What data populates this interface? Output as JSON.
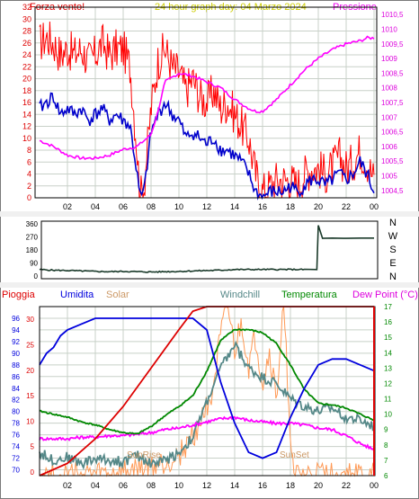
{
  "chart_data": [
    {
      "type": "line",
      "title": "24 hour graph day:  04 Marzo 2024",
      "left_axis_title": "Forza vento!",
      "right_axis_title": "Pressione",
      "x_ticks": [
        "02",
        "04",
        "06",
        "08",
        "10",
        "12",
        "14",
        "16",
        "18",
        "20",
        "22",
        "00"
      ],
      "left_axis": {
        "min": 0,
        "max": 32,
        "ticks": [
          "0",
          "2",
          "4",
          "6",
          "8",
          "10",
          "12",
          "14",
          "16",
          "18",
          "20",
          "22",
          "24",
          "26",
          "28",
          "30",
          "32"
        ]
      },
      "right_axis": {
        "min": 1004.25,
        "max": 1010.75,
        "ticks": [
          "1004,5",
          "1005",
          "1005,5",
          "1006",
          "1006,5",
          "1007",
          "1007,5",
          "1008",
          "1008,5",
          "1009",
          "1009,5",
          "1010",
          "1010,5"
        ]
      },
      "grid": true,
      "series": [
        {
          "axis": "left",
          "color": "#ff0000",
          "x": [
            0,
            0.5,
            1,
            1.5,
            2,
            2.5,
            3,
            3.5,
            4,
            4.5,
            5,
            5.5,
            6,
            6.5,
            7,
            7.2,
            7.5,
            8,
            8.5,
            9,
            9.5,
            10,
            10.5,
            11,
            11.5,
            12,
            12.5,
            13,
            13.5,
            14,
            14.5,
            15,
            15.5,
            16,
            16.5,
            17,
            17.5,
            18,
            18.5,
            19,
            19.5,
            20,
            20.5,
            21,
            21.5,
            22,
            22.5,
            23,
            23.5,
            24
          ],
          "y": [
            26,
            27,
            26,
            24,
            25,
            24,
            25,
            23,
            24,
            26,
            24,
            25,
            25,
            22,
            8,
            0,
            2,
            15,
            23,
            25,
            22,
            21,
            18,
            20,
            17,
            16,
            18,
            15,
            16,
            14,
            12,
            10,
            4,
            1,
            2,
            3,
            3,
            3,
            2,
            4,
            5,
            5,
            4,
            5,
            7,
            5,
            6,
            8,
            6,
            3
          ]
        },
        {
          "axis": "left",
          "color": "#0000cc",
          "x": [
            0,
            0.5,
            1,
            1.5,
            2,
            2.5,
            3,
            3.5,
            4,
            4.5,
            5,
            5.5,
            6,
            6.5,
            7,
            7.2,
            7.5,
            8,
            8.5,
            9,
            9.5,
            10,
            10.5,
            11,
            11.5,
            12,
            12.5,
            13,
            13.5,
            14,
            14.5,
            15,
            15.5,
            16,
            16.5,
            17,
            17.5,
            18,
            18.5,
            19,
            19.5,
            20,
            20.5,
            21,
            21.5,
            22,
            22.5,
            23,
            23.5,
            24
          ],
          "y": [
            15,
            16,
            17,
            14,
            15,
            14,
            15,
            13,
            14,
            15,
            13,
            14,
            13,
            12,
            4,
            0,
            1,
            11,
            14,
            16,
            14,
            13,
            10,
            11,
            10,
            9,
            10,
            8,
            8,
            7,
            6,
            4,
            1,
            0,
            1,
            1,
            1,
            2,
            1,
            2,
            3,
            3,
            2,
            3,
            4,
            3,
            4,
            6,
            4,
            1
          ]
        },
        {
          "axis": "right",
          "color": "#ff00ff",
          "x": [
            0,
            1,
            2,
            3,
            4,
            5,
            6,
            7,
            8,
            8.5,
            9,
            10,
            11,
            12,
            13,
            14,
            15,
            15.5,
            16,
            17,
            18,
            19,
            20,
            21,
            22,
            23,
            23.5,
            24
          ],
          "y": [
            1006.2,
            1006,
            1005.7,
            1005.6,
            1005.6,
            1005.7,
            1005.9,
            1006,
            1006.4,
            1007.2,
            1008.2,
            1008.5,
            1008.4,
            1008.2,
            1008,
            1007.6,
            1007.3,
            1007.2,
            1007.2,
            1007.6,
            1008.1,
            1008.6,
            1009,
            1009.3,
            1009.5,
            1009.6,
            1009.7,
            1009.7
          ]
        }
      ]
    },
    {
      "type": "line",
      "labels": [
        "N",
        "W",
        "S",
        "E",
        "N"
      ],
      "x_ticks": [
        "02",
        "04",
        "06",
        "08",
        "10",
        "12",
        "14",
        "16",
        "18",
        "20",
        "22",
        "00"
      ],
      "y_axis": {
        "min": 0,
        "max": 360,
        "ticks": [
          "0",
          "90",
          "180",
          "270",
          "360"
        ]
      },
      "grid": false,
      "series": [
        {
          "color": "#1a3a2a",
          "x": [
            0,
            1,
            2,
            3,
            4,
            5,
            6,
            7,
            8,
            9,
            10,
            11,
            12,
            13,
            14,
            15,
            16,
            17,
            18,
            19,
            19.9,
            20,
            20.3,
            21,
            22,
            23,
            24
          ],
          "y": [
            45,
            40,
            38,
            35,
            32,
            30,
            32,
            30,
            28,
            30,
            32,
            35,
            38,
            40,
            45,
            45,
            45,
            45,
            45,
            45,
            45,
            350,
            260,
            262,
            260,
            262,
            262
          ]
        }
      ]
    },
    {
      "type": "line",
      "legend": [
        "Pioggia",
        "Umidita",
        "Solar",
        "Windchill",
        "Temperatura",
        "Dew Point (°C)"
      ],
      "x_ticks": [
        "02",
        "04",
        "06",
        "08",
        "10",
        "12",
        "14",
        "16",
        "18",
        "20",
        "22",
        "00"
      ],
      "left_axis": {
        "min": 69,
        "max": 98,
        "ticks": [
          "70",
          "72",
          "74",
          "76",
          "78",
          "80",
          "82",
          "84",
          "86",
          "88",
          "90",
          "92",
          "94",
          "96"
        ]
      },
      "right_axis": {
        "min": 6,
        "max": 17,
        "ticks": [
          "6",
          "7",
          "8",
          "9",
          "10",
          "11",
          "12",
          "13",
          "14",
          "15",
          "16",
          "17"
        ]
      },
      "inner_ticks": [
        "0",
        "5",
        "10",
        "15",
        "20",
        "25",
        "30"
      ],
      "annotations": [
        "SunRise",
        "SunSet"
      ],
      "grid": true,
      "series": [
        {
          "name": "Pioggia",
          "axis": "right",
          "color": "#dd0000",
          "x": [
            0,
            2,
            4,
            6,
            8,
            10,
            11,
            12,
            24
          ],
          "y": [
            6,
            6.8,
            8.4,
            10.5,
            13,
            15.5,
            16.7,
            17,
            17
          ]
        },
        {
          "name": "Umidita",
          "axis": "left",
          "color": "#0000dd",
          "x": [
            0,
            0.5,
            1,
            1.5,
            2,
            3,
            4,
            5,
            6,
            6.5,
            7,
            8,
            9,
            10,
            11,
            12,
            13,
            14,
            15,
            16,
            17,
            18,
            19,
            20,
            21,
            22,
            23,
            24
          ],
          "y": [
            88,
            90,
            91,
            93,
            94,
            95,
            96,
            96,
            96,
            96,
            96,
            96,
            96,
            96,
            96,
            94,
            85,
            78,
            73,
            72,
            73,
            79,
            84,
            88,
            89,
            89,
            88,
            87
          ]
        },
        {
          "name": "Solar",
          "axis": "right",
          "color": "#ff9955",
          "x": [
            0,
            5,
            6,
            7,
            8,
            9,
            10,
            11,
            12,
            12.5,
            13,
            13.5,
            14,
            14.5,
            15,
            15.5,
            16,
            16.5,
            17,
            17.5,
            18,
            18.2,
            19,
            24
          ],
          "y": [
            6,
            6,
            6.1,
            6.3,
            6.5,
            6.8,
            7.4,
            8.5,
            10.5,
            12,
            15,
            17,
            14,
            16,
            13,
            15,
            12,
            14,
            11,
            17,
            9,
            6,
            6,
            6
          ]
        },
        {
          "name": "Windchill",
          "axis": "right",
          "color": "#558888",
          "x": [
            0,
            1,
            2,
            3,
            4,
            5,
            6,
            7,
            8,
            9,
            10,
            11,
            12,
            13,
            14,
            15,
            16,
            17,
            18,
            19,
            20,
            21,
            22,
            23,
            24
          ],
          "y": [
            7.5,
            7,
            7.2,
            6.8,
            7.1,
            7,
            6.9,
            7.3,
            6.8,
            7,
            7.5,
            8.5,
            10.8,
            13,
            14.5,
            13,
            12.4,
            12,
            11,
            10.5,
            10.2,
            10.4,
            9.8,
            9.6,
            9.2
          ]
        },
        {
          "name": "Temperatura",
          "axis": "right",
          "color": "#008800",
          "x": [
            0,
            1,
            2,
            3,
            4,
            5,
            6,
            7,
            8,
            9,
            10,
            11,
            12,
            13,
            14,
            15,
            16,
            17,
            18,
            19,
            20,
            21,
            22,
            23,
            24
          ],
          "y": [
            10.2,
            10,
            9.8,
            9.5,
            9.3,
            9,
            8.8,
            8.7,
            9.2,
            9.9,
            10.5,
            11.2,
            12.8,
            14.8,
            15.5,
            15.5,
            15.3,
            14.6,
            13.2,
            11.6,
            10.7,
            10.6,
            10.4,
            10,
            9.6
          ]
        },
        {
          "name": "Dew Point (°C)",
          "axis": "right",
          "color": "#ff00ff",
          "x": [
            0,
            1,
            2,
            3,
            4,
            5,
            6,
            7,
            8,
            9,
            10,
            11,
            12,
            13,
            14,
            15,
            16,
            17,
            18,
            19,
            20,
            21,
            22,
            23,
            24
          ],
          "y": [
            8.4,
            8.4,
            8.4,
            8.5,
            8.5,
            8.6,
            8.6,
            8.7,
            8.8,
            9,
            9.1,
            9.3,
            9.5,
            9.7,
            9.8,
            9.6,
            9.5,
            9.4,
            9.4,
            9.3,
            9.1,
            9,
            8.6,
            8.1,
            7.7
          ]
        }
      ]
    }
  ],
  "colors": {
    "frame": "#000000",
    "grid": "#b8c8b8",
    "window_bg": "#f0f0f0"
  }
}
